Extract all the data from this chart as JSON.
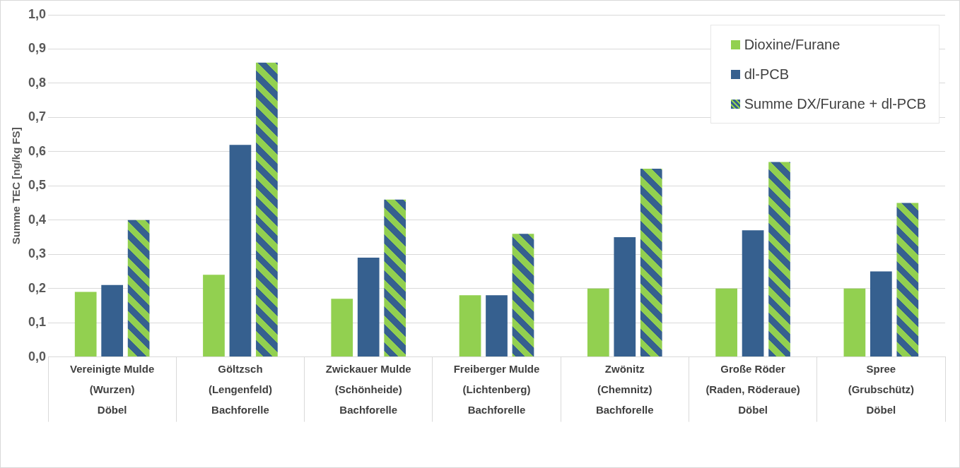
{
  "chart_data": {
    "type": "bar",
    "ylabel": "Summe TEC [ng/kg FS]",
    "categories": [
      "Vereinigte Mulde\n(Wurzen)\nDöbel",
      "Göltzsch\n(Lengenfeld)\nBachforelle",
      "Zwickauer Mulde\n(Schönheide)\nBachforelle",
      "Freiberger Mulde\n(Lichtenberg)\nBachforelle",
      "Zwönitz\n(Chemnitz)\nBachforelle",
      "Große Röder\n(Raden, Röderaue)\nDöbel",
      "Spree\n(Grubschütz)\nDöbel"
    ],
    "series": [
      {
        "name": "Dioxine/Furane",
        "color": "#92d050",
        "values": [
          0.19,
          0.24,
          0.17,
          0.18,
          0.2,
          0.2,
          0.2
        ]
      },
      {
        "name": "dl-PCB",
        "color": "#36608f",
        "values": [
          0.21,
          0.62,
          0.29,
          0.18,
          0.35,
          0.37,
          0.25
        ]
      },
      {
        "name": "Summe DX/Furane + dl-PCB",
        "color": "#36608f",
        "values": [
          0.4,
          0.86,
          0.46,
          0.36,
          0.55,
          0.57,
          0.45
        ]
      }
    ],
    "ylim": [
      0,
      1
    ],
    "yticks": [
      {
        "value": 0,
        "label": "0,0"
      },
      {
        "value": 0.1,
        "label": "0,1"
      },
      {
        "value": 0.2,
        "label": "0,2"
      },
      {
        "value": 0.3,
        "label": "0,3"
      },
      {
        "value": 0.4,
        "label": "0,4"
      },
      {
        "value": 0.5,
        "label": "0,5"
      },
      {
        "value": 0.6,
        "label": "0,6"
      },
      {
        "value": 0.7,
        "label": "0,7"
      },
      {
        "value": 0.8,
        "label": "0,8"
      },
      {
        "value": 0.9,
        "label": "0,9"
      },
      {
        "value": 1,
        "label": "1,0"
      }
    ],
    "grid": "y",
    "legend": "top right"
  }
}
